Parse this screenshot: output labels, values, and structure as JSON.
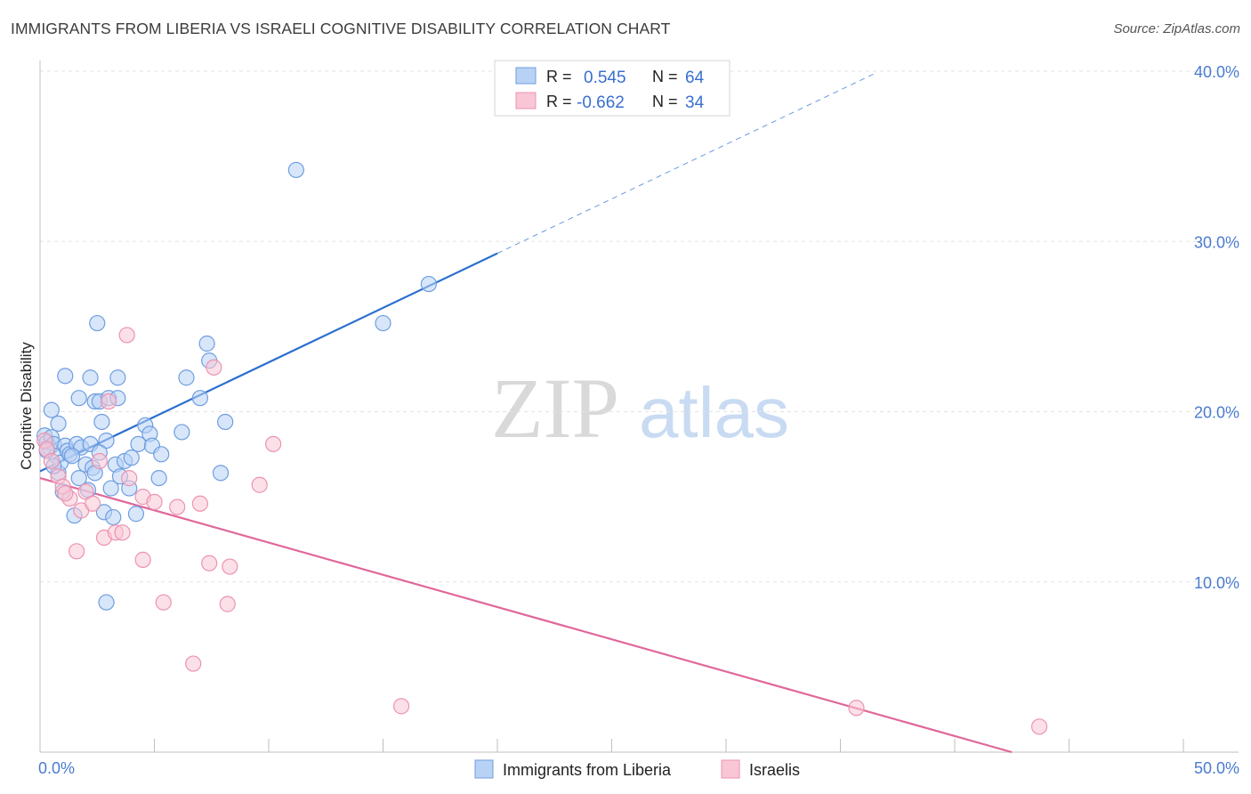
{
  "header": {
    "title": "IMMIGRANTS FROM LIBERIA VS ISRAELI COGNITIVE DISABILITY CORRELATION CHART",
    "source": "Source: ZipAtlas.com"
  },
  "watermark": {
    "zip": "ZIP",
    "atlas": "atlas"
  },
  "stats": {
    "r_label": "R =",
    "n_label": "N =",
    "rows": [
      {
        "r": "0.545",
        "n": "64"
      },
      {
        "r": "-0.662",
        "n": "34"
      }
    ]
  },
  "chart_data": {
    "type": "scatter",
    "title": "IMMIGRANTS FROM LIBERIA VS ISRAELI COGNITIVE DISABILITY CORRELATION CHART",
    "xlabel": "",
    "ylabel": "Cognitive Disability",
    "xlim": [
      0,
      50
    ],
    "ylim": [
      0,
      40
    ],
    "x_tick_labels": [
      "0.0%",
      "50.0%"
    ],
    "y_ticks": [
      10,
      20,
      30,
      40
    ],
    "y_tick_labels": [
      "10.0%",
      "20.0%",
      "30.0%",
      "40.0%"
    ],
    "grid": true,
    "legend_position": "bottom-center",
    "colors": {
      "blue_fill": "#b8d2f5",
      "blue_stroke": "#6e9edf",
      "blue_line": "#2a6fd0",
      "pink_fill": "#f9c6d6",
      "pink_stroke": "#ec93b0",
      "pink_line": "#e0679a"
    },
    "series": [
      {
        "name": "Immigrants from Liberia",
        "color": "blue",
        "trend": {
          "x0": 0,
          "y0": 16.5,
          "x1": 20,
          "y1": 29.3,
          "dash_to_x": 36.5
        },
        "points": [
          [
            0.2,
            18.6
          ],
          [
            0.3,
            18.2
          ],
          [
            0.4,
            17.9
          ],
          [
            0.5,
            20.1
          ],
          [
            0.5,
            18.5
          ],
          [
            0.6,
            18.1
          ],
          [
            0.7,
            17.4
          ],
          [
            0.8,
            16.4
          ],
          [
            0.8,
            19.3
          ],
          [
            0.9,
            17.0
          ],
          [
            1.0,
            15.3
          ],
          [
            1.1,
            22.1
          ],
          [
            1.1,
            18.0
          ],
          [
            1.2,
            17.7
          ],
          [
            1.3,
            17.5
          ],
          [
            1.5,
            13.9
          ],
          [
            1.6,
            18.1
          ],
          [
            1.7,
            16.1
          ],
          [
            1.7,
            20.8
          ],
          [
            1.8,
            17.9
          ],
          [
            2.0,
            16.9
          ],
          [
            2.1,
            15.4
          ],
          [
            2.2,
            18.1
          ],
          [
            2.2,
            22.0
          ],
          [
            2.3,
            16.7
          ],
          [
            2.4,
            16.4
          ],
          [
            2.4,
            20.6
          ],
          [
            2.5,
            25.2
          ],
          [
            2.6,
            20.6
          ],
          [
            2.7,
            19.4
          ],
          [
            2.8,
            14.1
          ],
          [
            2.9,
            8.8
          ],
          [
            2.9,
            18.3
          ],
          [
            3.0,
            20.8
          ],
          [
            3.1,
            15.5
          ],
          [
            3.2,
            13.8
          ],
          [
            3.3,
            16.9
          ],
          [
            3.4,
            22.0
          ],
          [
            3.4,
            20.8
          ],
          [
            3.7,
            17.1
          ],
          [
            3.9,
            15.5
          ],
          [
            4.0,
            17.3
          ],
          [
            4.2,
            14.0
          ],
          [
            4.3,
            18.1
          ],
          [
            4.6,
            19.2
          ],
          [
            4.8,
            18.7
          ],
          [
            4.9,
            18.0
          ],
          [
            5.2,
            16.1
          ],
          [
            5.3,
            17.5
          ],
          [
            6.2,
            18.8
          ],
          [
            6.4,
            22.0
          ],
          [
            7.0,
            20.8
          ],
          [
            7.3,
            24.0
          ],
          [
            7.4,
            23.0
          ],
          [
            7.9,
            16.4
          ],
          [
            8.1,
            19.4
          ],
          [
            11.2,
            34.2
          ],
          [
            15.0,
            25.2
          ],
          [
            17.0,
            27.5
          ],
          [
            0.3,
            17.7
          ],
          [
            0.6,
            16.8
          ],
          [
            1.4,
            17.4
          ],
          [
            2.6,
            17.6
          ],
          [
            3.5,
            16.2
          ]
        ]
      },
      {
        "name": "Israelis",
        "color": "pink",
        "trend": {
          "x0": 0,
          "y0": 16.1,
          "x1": 42.5,
          "y1": 0
        },
        "points": [
          [
            0.2,
            18.3
          ],
          [
            0.3,
            17.8
          ],
          [
            0.5,
            17.1
          ],
          [
            0.8,
            16.2
          ],
          [
            1.0,
            15.6
          ],
          [
            1.3,
            14.9
          ],
          [
            1.6,
            11.8
          ],
          [
            1.8,
            14.2
          ],
          [
            2.0,
            15.3
          ],
          [
            2.3,
            14.6
          ],
          [
            2.6,
            17.1
          ],
          [
            2.8,
            12.6
          ],
          [
            3.0,
            20.6
          ],
          [
            3.3,
            12.9
          ],
          [
            3.6,
            12.9
          ],
          [
            3.8,
            24.5
          ],
          [
            3.9,
            16.1
          ],
          [
            4.5,
            11.3
          ],
          [
            4.5,
            15.0
          ],
          [
            5.0,
            14.7
          ],
          [
            5.4,
            8.8
          ],
          [
            6.0,
            14.4
          ],
          [
            6.7,
            5.2
          ],
          [
            7.0,
            14.6
          ],
          [
            7.4,
            11.1
          ],
          [
            7.6,
            22.6
          ],
          [
            8.2,
            8.7
          ],
          [
            8.3,
            10.9
          ],
          [
            9.6,
            15.7
          ],
          [
            10.2,
            18.1
          ],
          [
            15.8,
            2.7
          ],
          [
            35.7,
            2.6
          ],
          [
            43.7,
            1.5
          ],
          [
            1.1,
            15.2
          ]
        ]
      }
    ]
  },
  "legend": {
    "items": [
      {
        "label": "Immigrants from Liberia"
      },
      {
        "label": "Israelis"
      }
    ]
  }
}
